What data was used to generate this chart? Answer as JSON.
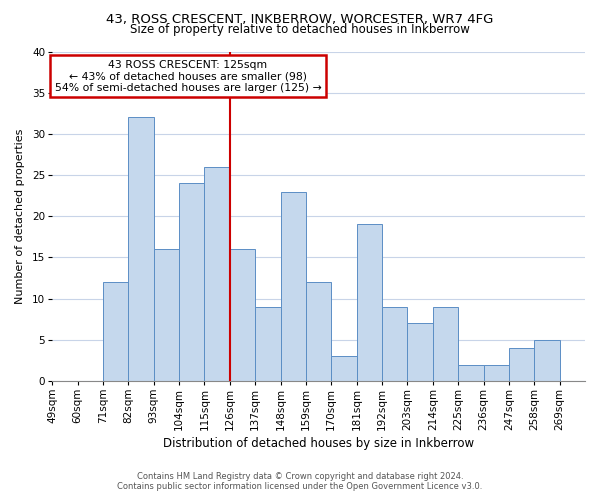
{
  "title": "43, ROSS CRESCENT, INKBERROW, WORCESTER, WR7 4FG",
  "subtitle": "Size of property relative to detached houses in Inkberrow",
  "xlabel": "Distribution of detached houses by size in Inkberrow",
  "ylabel": "Number of detached properties",
  "bar_labels": [
    "49sqm",
    "60sqm",
    "71sqm",
    "82sqm",
    "93sqm",
    "104sqm",
    "115sqm",
    "126sqm",
    "137sqm",
    "148sqm",
    "159sqm",
    "170sqm",
    "181sqm",
    "192sqm",
    "203sqm",
    "214sqm",
    "225sqm",
    "236sqm",
    "247sqm",
    "258sqm",
    "269sqm"
  ],
  "bar_values": [
    0,
    0,
    12,
    32,
    16,
    24,
    26,
    16,
    9,
    23,
    12,
    3,
    19,
    9,
    7,
    9,
    2,
    2,
    4,
    5,
    0
  ],
  "bin_edges": [
    49,
    60,
    71,
    82,
    93,
    104,
    115,
    126,
    137,
    148,
    159,
    170,
    181,
    192,
    203,
    214,
    225,
    236,
    247,
    258,
    269,
    280
  ],
  "bar_color": "#c5d8ed",
  "bar_edge_color": "#5b8ec5",
  "vline_x": 126,
  "vline_color": "#cc0000",
  "annotation_line1": "43 ROSS CRESCENT: 125sqm",
  "annotation_line2": "← 43% of detached houses are smaller (98)",
  "annotation_line3": "54% of semi-detached houses are larger (125) →",
  "annotation_box_color": "#ffffff",
  "annotation_box_edge_color": "#cc0000",
  "ylim": [
    0,
    40
  ],
  "yticks": [
    0,
    5,
    10,
    15,
    20,
    25,
    30,
    35,
    40
  ],
  "footer1": "Contains HM Land Registry data © Crown copyright and database right 2024.",
  "footer2": "Contains public sector information licensed under the Open Government Licence v3.0.",
  "bg_color": "#ffffff",
  "plot_bg_color": "#ffffff",
  "grid_color": "#c8d4e8",
  "title_fontsize": 9.5,
  "subtitle_fontsize": 8.5,
  "xlabel_fontsize": 8.5,
  "ylabel_fontsize": 8.0,
  "tick_fontsize": 7.5,
  "annotation_fontsize": 7.8,
  "footer_fontsize": 6.0
}
